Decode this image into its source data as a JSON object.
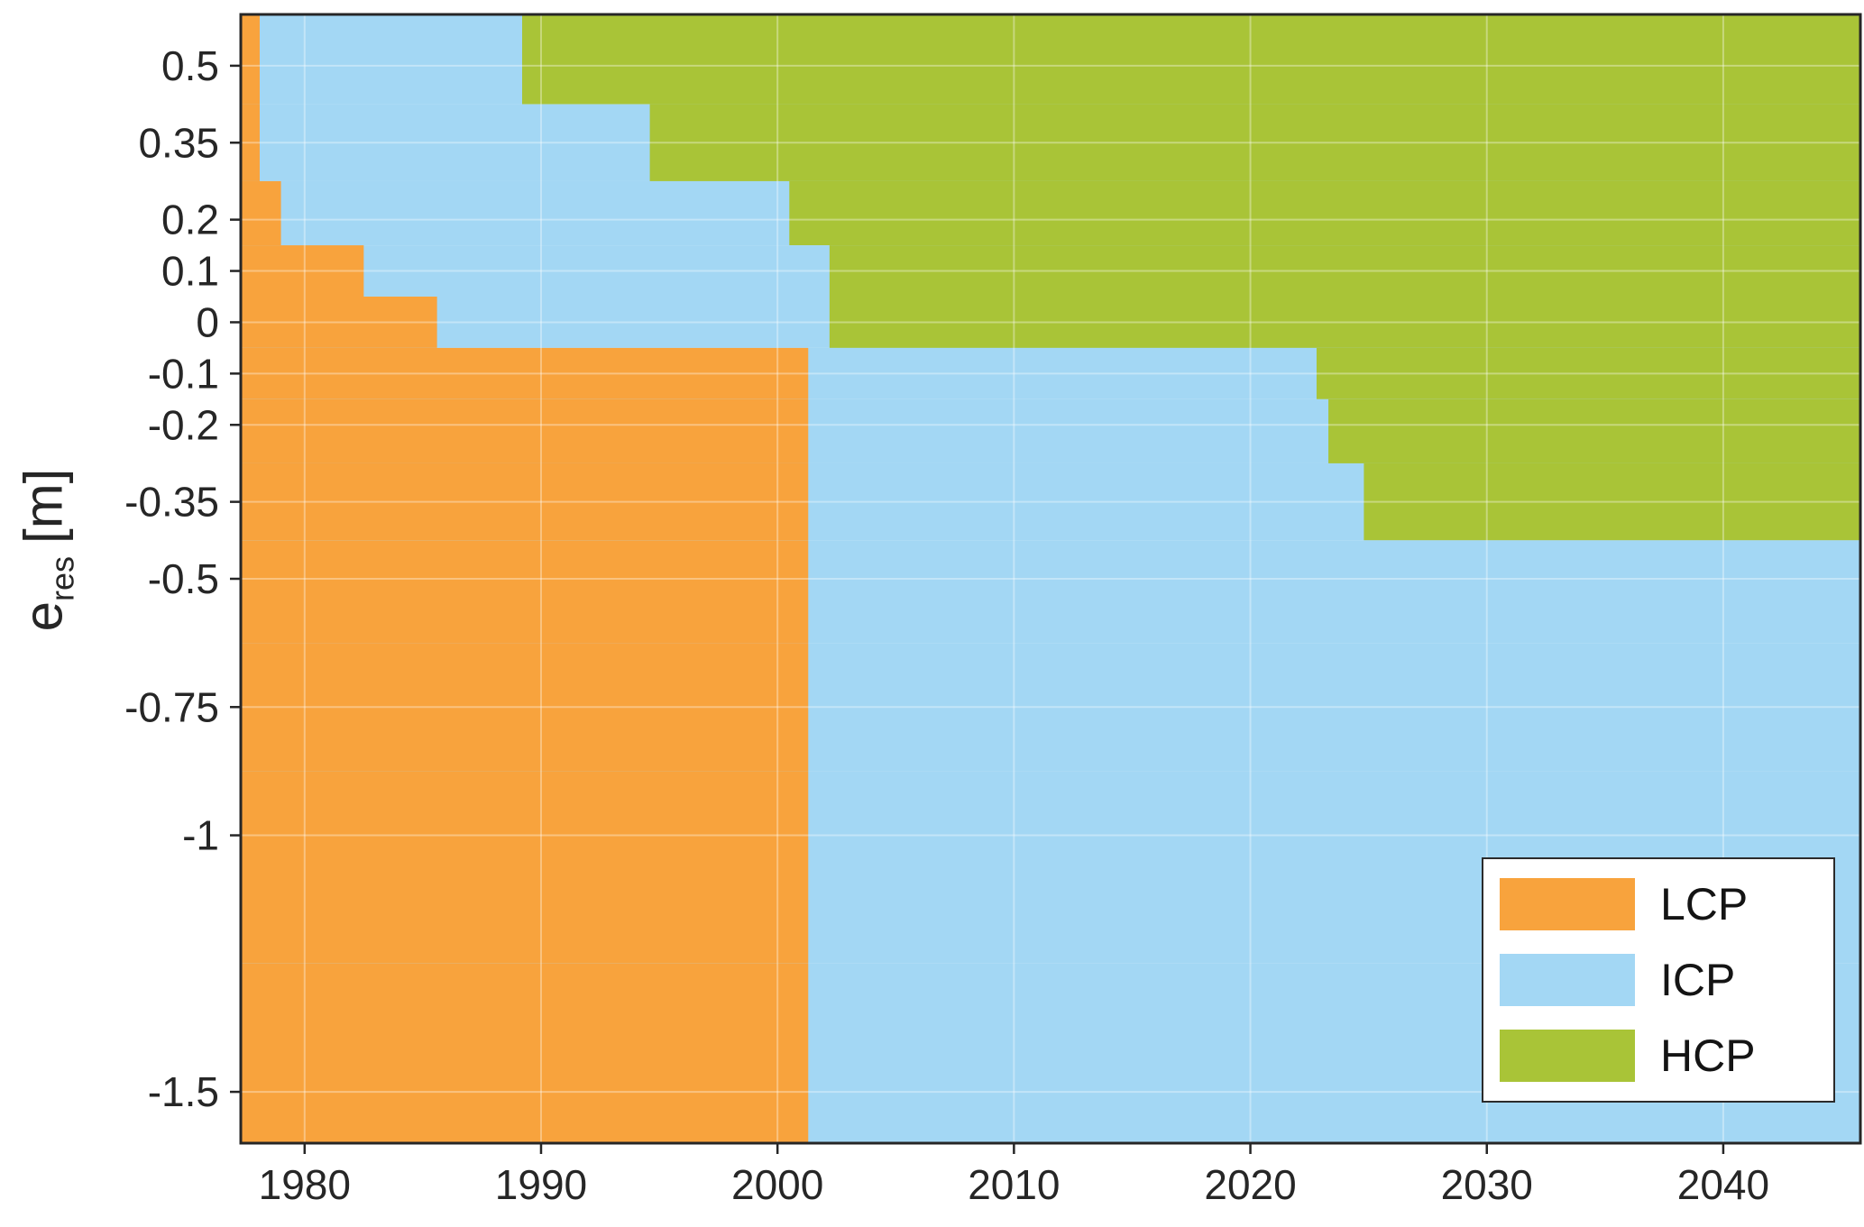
{
  "figure": {
    "ylabel": {
      "main": "e",
      "sub": "res",
      "unit": "[m]"
    },
    "x_ticks": [
      1980,
      1990,
      2000,
      2010,
      2020,
      2030,
      2040
    ],
    "x_tick_labels": [
      "1980",
      "1990",
      "2000",
      "2010",
      "2020",
      "2030",
      "2040"
    ],
    "y_ticks": [
      0.5,
      0.35,
      0.2,
      0.1,
      0,
      -0.1,
      -0.2,
      -0.35,
      -0.5,
      -0.75,
      -1,
      -1.5
    ],
    "y_tick_labels": [
      "0.5",
      "0.35",
      "0.2",
      "0.1",
      "0",
      "-0.1",
      "-0.2",
      "-0.35",
      "-0.5",
      "-0.75",
      "-1",
      "-1.5"
    ],
    "axis_color": "#262626",
    "grid_color": "#ffffff"
  },
  "chart_data": {
    "type": "heatmap",
    "subtype": "region-map",
    "title": "",
    "xlabel": "",
    "ylabel": "e_res [m]",
    "xlim": [
      1977.3,
      2045.8
    ],
    "ylim": [
      -1.6,
      0.6
    ],
    "grid": true,
    "legend_position": "bottom-right",
    "regions": [
      "LCP",
      "ICP",
      "HCP"
    ],
    "colors": {
      "LCP": "#F8A33D",
      "ICP": "#A3D7F4",
      "HCP": "#A9C437"
    },
    "band_edges": [
      0.6,
      0.425,
      0.275,
      0.15,
      0.05,
      -0.05,
      -0.15,
      -0.275,
      -0.425,
      -0.625,
      -0.875,
      -1.25,
      -1.6
    ],
    "rows": [
      {
        "e_res": 0.5,
        "lcp_until": 1978.1,
        "hcp_from": 1989.2
      },
      {
        "e_res": 0.35,
        "lcp_until": 1978.1,
        "hcp_from": 1994.6
      },
      {
        "e_res": 0.2,
        "lcp_until": 1979.0,
        "hcp_from": 2000.5
      },
      {
        "e_res": 0.1,
        "lcp_until": 1982.5,
        "hcp_from": 2002.2
      },
      {
        "e_res": 0,
        "lcp_until": 1985.6,
        "hcp_from": 2002.2
      },
      {
        "e_res": -0.1,
        "lcp_until": 2001.3,
        "hcp_from": 2022.8
      },
      {
        "e_res": -0.2,
        "lcp_until": 2001.3,
        "hcp_from": 2023.3
      },
      {
        "e_res": -0.35,
        "lcp_until": 2001.3,
        "hcp_from": 2024.8
      },
      {
        "e_res": -0.5,
        "lcp_until": 2001.3,
        "hcp_from": null
      },
      {
        "e_res": -0.75,
        "lcp_until": 2001.3,
        "hcp_from": null
      },
      {
        "e_res": -1,
        "lcp_until": 2001.3,
        "hcp_from": null
      },
      {
        "e_res": -1.5,
        "lcp_until": 2001.3,
        "hcp_from": null
      }
    ],
    "legend": {
      "items": [
        {
          "label": "LCP",
          "color": "#F8A33D"
        },
        {
          "label": "ICP",
          "color": "#A3D7F4"
        },
        {
          "label": "HCP",
          "color": "#A9C437"
        }
      ]
    }
  }
}
